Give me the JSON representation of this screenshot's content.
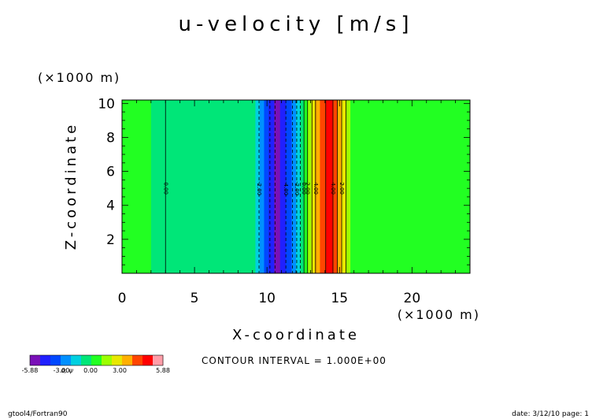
{
  "chart_data": {
    "type": "heatmap",
    "title": "u-velocity [m/s]",
    "xlabel": "X-coordinate",
    "ylabel": "Z-coordinate",
    "x_unit": "(×1000 m)",
    "y_unit": "(×1000 m)",
    "xlim": [
      0,
      24
    ],
    "ylim": [
      0,
      10.2
    ],
    "x_ticks": [
      0,
      5,
      10,
      15,
      20
    ],
    "y_ticks": [
      2,
      4,
      6,
      8,
      10
    ],
    "x_tick_labels": [
      "0",
      "5",
      "10",
      "15",
      "20"
    ],
    "y_tick_labels": [
      "2",
      "4",
      "6",
      "8",
      "10"
    ],
    "grid": false,
    "field_columns": [
      {
        "x0": 0.0,
        "x1": 2.0,
        "value": 0.3
      },
      {
        "x0": 2.0,
        "x1": 9.2,
        "value": -0.3
      },
      {
        "x0": 9.2,
        "x1": 9.5,
        "value": -1.3
      },
      {
        "x0": 9.5,
        "x1": 9.8,
        "value": -2.3
      },
      {
        "x0": 9.8,
        "x1": 10.1,
        "value": -3.3
      },
      {
        "x0": 10.1,
        "x1": 10.5,
        "value": -4.3
      },
      {
        "x0": 10.5,
        "x1": 10.9,
        "value": -5.3
      },
      {
        "x0": 10.9,
        "x1": 11.3,
        "value": -4.3
      },
      {
        "x0": 11.3,
        "x1": 11.7,
        "value": -3.3
      },
      {
        "x0": 11.7,
        "x1": 12.0,
        "value": -2.3
      },
      {
        "x0": 12.0,
        "x1": 12.3,
        "value": -1.3
      },
      {
        "x0": 12.3,
        "x1": 12.55,
        "value": -0.3
      },
      {
        "x0": 12.55,
        "x1": 12.8,
        "value": 0.3
      },
      {
        "x0": 12.8,
        "x1": 13.05,
        "value": 1.3
      },
      {
        "x0": 13.05,
        "x1": 13.3,
        "value": 2.3
      },
      {
        "x0": 13.3,
        "x1": 13.65,
        "value": 3.3
      },
      {
        "x0": 13.65,
        "x1": 14.05,
        "value": 4.3
      },
      {
        "x0": 14.05,
        "x1": 14.55,
        "value": 5.3
      },
      {
        "x0": 14.55,
        "x1": 14.85,
        "value": 4.3
      },
      {
        "x0": 14.85,
        "x1": 15.15,
        "value": 3.3
      },
      {
        "x0": 15.15,
        "x1": 15.45,
        "value": 2.3
      },
      {
        "x0": 15.45,
        "x1": 15.75,
        "value": 1.3
      },
      {
        "x0": 15.75,
        "x1": 24.0,
        "value": 0.3
      }
    ],
    "contours": [
      {
        "x": 3.0,
        "label": "0.00",
        "style": "solid"
      },
      {
        "x": 9.45,
        "label": "-2.00",
        "style": "dashed"
      },
      {
        "x": 10.2,
        "label": "",
        "style": "dashed"
      },
      {
        "x": 10.55,
        "label": "",
        "style": "dashed"
      },
      {
        "x": 11.3,
        "label": "-4.00",
        "style": "dashed"
      },
      {
        "x": 11.75,
        "label": "",
        "style": "dashed"
      },
      {
        "x": 12.05,
        "label": "-2.00",
        "style": "dashed"
      },
      {
        "x": 12.3,
        "label": "",
        "style": "dashed"
      },
      {
        "x": 12.55,
        "label": "0.00",
        "style": "solid"
      },
      {
        "x": 12.8,
        "label": "2.00",
        "style": "solid"
      },
      {
        "x": 13.1,
        "label": "",
        "style": "solid"
      },
      {
        "x": 13.35,
        "label": "4.00",
        "style": "solid"
      },
      {
        "x": 14.05,
        "label": "",
        "style": "solid"
      },
      {
        "x": 14.55,
        "label": "4.00",
        "style": "solid"
      },
      {
        "x": 14.85,
        "label": "",
        "style": "solid"
      },
      {
        "x": 15.15,
        "label": "2.00",
        "style": "solid"
      },
      {
        "x": 15.45,
        "label": "",
        "style": "solid"
      }
    ],
    "contour_label_y": 5.0,
    "colorbar": {
      "levels": [
        -6,
        -5,
        -4,
        -3,
        -2,
        -1,
        0,
        1,
        2,
        3,
        4,
        5,
        6
      ],
      "colors": [
        "#7a10b8",
        "#2020ff",
        "#0048ff",
        "#0090ff",
        "#00d0e0",
        "#00e678",
        "#22ff22",
        "#9cff00",
        "#e8e800",
        "#ffb000",
        "#ff4500",
        "#ff0000",
        "#ff9da8"
      ],
      "tick_labels": [
        "-5.88",
        "-3.00",
        "0.00",
        "3.00",
        "5.88"
      ],
      "overlap_label": "σ; ψ",
      "contour_interval": "CONTOUR INTERVAL = 1.000E+00"
    }
  },
  "footer": {
    "left": "gtool4/Fortran90",
    "right": "date: 3/12/10 page: 1"
  }
}
